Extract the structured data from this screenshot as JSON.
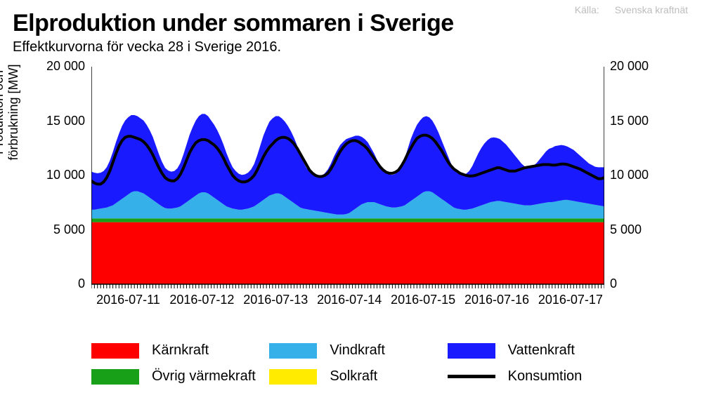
{
  "source_prefix": "Källa:",
  "source_name": "Svenska kraftnät",
  "title": "Elproduktion under sommaren i Sverige",
  "subtitle": "Effektkurvorna för vecka 28 i Sverige 2016.",
  "yaxis_label_line1": "Produktion och",
  "yaxis_label_line2": "förbrukning [MW]",
  "chart": {
    "type": "stacked_area_with_line",
    "background_color": "#ffffff",
    "axis_color": "#000000",
    "ylim": [
      0,
      20000
    ],
    "ytick_values": [
      0,
      5000,
      10000,
      15000,
      20000
    ],
    "ytick_labels": [
      "0",
      "5 000",
      "10 000",
      "15 000",
      "20 000"
    ],
    "x_count": 168,
    "x_major_ticks": [
      12,
      36,
      60,
      84,
      108,
      132,
      156
    ],
    "x_labels": [
      "2016-07-11",
      "2016-07-12",
      "2016-07-13",
      "2016-07-14",
      "2016-07-15",
      "2016-07-16",
      "2016-07-17"
    ],
    "series": [
      {
        "key": "karnkraft",
        "color": "#ff0000",
        "label": "Kärnkraft"
      },
      {
        "key": "ovrig_varmekraft",
        "color": "#18a018",
        "label": "Övrig värmekraft"
      },
      {
        "key": "vindkraft",
        "color": "#35b0e8",
        "label": "Vindkraft"
      },
      {
        "key": "solkraft",
        "color": "#ffeb00",
        "label": "Solkraft"
      },
      {
        "key": "vattenkraft",
        "color": "#1a1aff",
        "label": "Vattenkraft"
      }
    ],
    "line_series": {
      "key": "konsumtion",
      "color": "#000000",
      "width": 4,
      "label": "Konsumtion"
    },
    "data": {
      "karnkraft": [
        5700,
        5700,
        5700,
        5700,
        5700,
        5700,
        5700,
        5700,
        5700,
        5700,
        5700,
        5700,
        5700,
        5700,
        5700,
        5700,
        5700,
        5700,
        5700,
        5700,
        5700,
        5700,
        5700,
        5700,
        5700,
        5700,
        5700,
        5700,
        5700,
        5700,
        5700,
        5700,
        5700,
        5700,
        5700,
        5700,
        5700,
        5700,
        5700,
        5700,
        5700,
        5700,
        5700,
        5700,
        5700,
        5700,
        5700,
        5700,
        5700,
        5700,
        5700,
        5700,
        5700,
        5700,
        5700,
        5700,
        5700,
        5700,
        5700,
        5700,
        5700,
        5700,
        5700,
        5700,
        5700,
        5700,
        5700,
        5700,
        5700,
        5700,
        5700,
        5700,
        5700,
        5700,
        5700,
        5700,
        5700,
        5700,
        5700,
        5700,
        5700,
        5700,
        5700,
        5700,
        5700,
        5700,
        5700,
        5700,
        5700,
        5700,
        5700,
        5700,
        5700,
        5700,
        5700,
        5700,
        5700,
        5700,
        5700,
        5700,
        5700,
        5700,
        5700,
        5700,
        5700,
        5700,
        5700,
        5700,
        5700,
        5700,
        5700,
        5700,
        5700,
        5700,
        5700,
        5700,
        5700,
        5700,
        5700,
        5700,
        5700,
        5700,
        5700,
        5700,
        5700,
        5700,
        5700,
        5700,
        5700,
        5700,
        5700,
        5700,
        5700,
        5700,
        5700,
        5700,
        5700,
        5700,
        5700,
        5700,
        5700,
        5700,
        5700,
        5700,
        5700,
        5700,
        5700,
        5700,
        5700,
        5700,
        5700,
        5700,
        5700,
        5700,
        5700,
        5700,
        5700,
        5700,
        5700,
        5700,
        5700,
        5700,
        5700,
        5700,
        5700,
        5700,
        5700,
        5700
      ],
      "ovrig_varmekraft": [
        350,
        350,
        350,
        350,
        350,
        350,
        350,
        350,
        350,
        350,
        350,
        350,
        350,
        350,
        350,
        350,
        350,
        350,
        350,
        350,
        350,
        350,
        350,
        350,
        350,
        350,
        350,
        350,
        350,
        350,
        350,
        350,
        350,
        350,
        350,
        350,
        350,
        350,
        350,
        350,
        350,
        350,
        350,
        350,
        350,
        350,
        350,
        350,
        350,
        350,
        350,
        350,
        350,
        350,
        350,
        350,
        350,
        350,
        350,
        350,
        350,
        350,
        350,
        350,
        350,
        350,
        350,
        350,
        350,
        350,
        350,
        350,
        350,
        350,
        350,
        350,
        350,
        350,
        350,
        350,
        350,
        350,
        350,
        350,
        350,
        350,
        350,
        350,
        350,
        350,
        350,
        350,
        350,
        350,
        350,
        350,
        350,
        350,
        350,
        350,
        350,
        350,
        350,
        350,
        350,
        350,
        350,
        350,
        350,
        350,
        350,
        350,
        350,
        350,
        350,
        350,
        350,
        350,
        350,
        350,
        350,
        350,
        350,
        350,
        350,
        350,
        350,
        350,
        350,
        350,
        350,
        350,
        350,
        350,
        350,
        350,
        350,
        350,
        350,
        350,
        350,
        350,
        350,
        350,
        350,
        350,
        350,
        350,
        350,
        350,
        350,
        350,
        350,
        350,
        350,
        350,
        350,
        350,
        350,
        350,
        350,
        350,
        350,
        350,
        350,
        350,
        350,
        350
      ],
      "vindkraft": [
        800,
        800,
        850,
        900,
        950,
        1000,
        1100,
        1200,
        1400,
        1600,
        1800,
        2000,
        2200,
        2400,
        2500,
        2500,
        2400,
        2300,
        2100,
        1900,
        1700,
        1500,
        1300,
        1100,
        950,
        900,
        900,
        950,
        1000,
        1100,
        1300,
        1500,
        1700,
        1900,
        2100,
        2300,
        2400,
        2400,
        2300,
        2100,
        1900,
        1700,
        1500,
        1300,
        1100,
        1000,
        900,
        850,
        800,
        800,
        850,
        900,
        1000,
        1100,
        1300,
        1500,
        1700,
        1900,
        2100,
        2200,
        2300,
        2300,
        2200,
        2000,
        1800,
        1600,
        1400,
        1200,
        1000,
        900,
        850,
        800,
        750,
        700,
        650,
        600,
        550,
        500,
        450,
        400,
        350,
        350,
        350,
        400,
        500,
        700,
        900,
        1100,
        1300,
        1400,
        1500,
        1500,
        1500,
        1400,
        1300,
        1200,
        1100,
        1050,
        1000,
        1000,
        1050,
        1100,
        1200,
        1400,
        1600,
        1800,
        2000,
        2200,
        2400,
        2500,
        2500,
        2400,
        2200,
        2000,
        1800,
        1600,
        1400,
        1200,
        1000,
        900,
        850,
        800,
        800,
        850,
        900,
        1000,
        1100,
        1200,
        1300,
        1400,
        1500,
        1550,
        1600,
        1600,
        1550,
        1500,
        1450,
        1400,
        1350,
        1300,
        1250,
        1200,
        1200,
        1200,
        1250,
        1300,
        1350,
        1400,
        1450,
        1500,
        1500,
        1550,
        1600,
        1650,
        1700,
        1700,
        1650,
        1600,
        1550,
        1500,
        1450,
        1400,
        1350,
        1300,
        1250,
        1200,
        1150,
        1100
      ],
      "solkraft": [
        0,
        0,
        0,
        0,
        0,
        0,
        0,
        0,
        0,
        0,
        0,
        0,
        0,
        0,
        0,
        0,
        0,
        0,
        0,
        0,
        0,
        0,
        0,
        0,
        0,
        0,
        0,
        0,
        0,
        0,
        0,
        0,
        0,
        0,
        0,
        0,
        0,
        0,
        0,
        0,
        0,
        0,
        0,
        0,
        0,
        0,
        0,
        0,
        0,
        0,
        0,
        0,
        0,
        0,
        0,
        0,
        0,
        0,
        0,
        0,
        0,
        0,
        0,
        0,
        0,
        0,
        0,
        0,
        0,
        0,
        0,
        0,
        0,
        0,
        0,
        0,
        0,
        0,
        0,
        0,
        0,
        0,
        0,
        0,
        0,
        0,
        0,
        0,
        0,
        0,
        0,
        0,
        0,
        0,
        0,
        0,
        0,
        0,
        0,
        0,
        0,
        0,
        0,
        0,
        0,
        0,
        0,
        0,
        0,
        0,
        0,
        0,
        0,
        0,
        0,
        0,
        0,
        0,
        0,
        0,
        0,
        0,
        0,
        0,
        0,
        0,
        0,
        0,
        0,
        0,
        0,
        0,
        0,
        0,
        0,
        0,
        0,
        0,
        0,
        0,
        0,
        0,
        0,
        0,
        0,
        0,
        0,
        0,
        0,
        0,
        0,
        0,
        0,
        0,
        0,
        0,
        0,
        0,
        0,
        0,
        0,
        0,
        0,
        0,
        0,
        0,
        0,
        0
      ],
      "vattenkraft": [
        3500,
        3400,
        3300,
        3300,
        3400,
        3700,
        4200,
        4900,
        5600,
        6200,
        6700,
        7000,
        7100,
        7100,
        7000,
        6900,
        6800,
        6700,
        6500,
        6200,
        5800,
        5200,
        4600,
        4100,
        3700,
        3500,
        3400,
        3400,
        3600,
        4000,
        4600,
        5300,
        6000,
        6500,
        6900,
        7100,
        7200,
        7200,
        7100,
        6900,
        6700,
        6400,
        6000,
        5500,
        4900,
        4300,
        3800,
        3500,
        3300,
        3200,
        3200,
        3300,
        3500,
        3900,
        4500,
        5200,
        5900,
        6400,
        6800,
        7000,
        7100,
        7100,
        7000,
        6900,
        6700,
        6400,
        6000,
        5500,
        4900,
        4300,
        3800,
        3500,
        3300,
        3200,
        3200,
        3300,
        3600,
        4000,
        4600,
        5300,
        5900,
        6400,
        6700,
        6900,
        6900,
        6800,
        6700,
        6500,
        6200,
        5900,
        5500,
        5000,
        4500,
        4000,
        3600,
        3300,
        3100,
        3000,
        3000,
        3100,
        3300,
        3700,
        4300,
        5000,
        5700,
        6200,
        6600,
        6800,
        6900,
        6900,
        6800,
        6600,
        6300,
        5900,
        5400,
        4900,
        4400,
        3900,
        3500,
        3300,
        3200,
        3200,
        3300,
        3500,
        3900,
        4400,
        4900,
        5300,
        5600,
        5800,
        5900,
        5900,
        5800,
        5700,
        5500,
        5300,
        5000,
        4700,
        4400,
        4100,
        3800,
        3600,
        3500,
        3500,
        3600,
        3800,
        4100,
        4400,
        4700,
        4900,
        5000,
        5100,
        5100,
        5100,
        5000,
        4900,
        4800,
        4700,
        4500,
        4300,
        4100,
        3900,
        3700,
        3600,
        3500,
        3500,
        3550,
        3600
      ],
      "konsumtion": [
        9500,
        9300,
        9200,
        9200,
        9400,
        9800,
        10400,
        11200,
        12000,
        12700,
        13200,
        13500,
        13600,
        13600,
        13500,
        13400,
        13300,
        13100,
        12800,
        12400,
        11900,
        11300,
        10700,
        10200,
        9800,
        9600,
        9500,
        9500,
        9700,
        10100,
        10700,
        11400,
        12100,
        12600,
        13000,
        13200,
        13300,
        13300,
        13200,
        13000,
        12800,
        12500,
        12100,
        11600,
        11000,
        10500,
        10000,
        9700,
        9500,
        9400,
        9400,
        9500,
        9700,
        10000,
        10500,
        11100,
        11700,
        12200,
        12600,
        12900,
        13200,
        13400,
        13500,
        13500,
        13400,
        13200,
        12900,
        12500,
        12000,
        11500,
        11000,
        10500,
        10200,
        10000,
        9900,
        9900,
        10000,
        10200,
        10600,
        11100,
        11700,
        12200,
        12600,
        12900,
        13100,
        13200,
        13200,
        13100,
        12900,
        12700,
        12400,
        12000,
        11600,
        11200,
        10800,
        10500,
        10300,
        10200,
        10200,
        10300,
        10500,
        10900,
        11400,
        12000,
        12500,
        13000,
        13400,
        13600,
        13700,
        13700,
        13600,
        13400,
        13100,
        12700,
        12300,
        11800,
        11300,
        10900,
        10600,
        10400,
        10200,
        10100,
        10000,
        9950,
        9950,
        10000,
        10100,
        10200,
        10300,
        10400,
        10500,
        10600,
        10700,
        10700,
        10600,
        10500,
        10400,
        10400,
        10400,
        10500,
        10600,
        10700,
        10750,
        10800,
        10850,
        10900,
        10950,
        11000,
        11000,
        11000,
        10950,
        10950,
        11000,
        11050,
        11050,
        11000,
        10900,
        10800,
        10700,
        10600,
        10450,
        10300,
        10150,
        10000,
        9850,
        9700,
        9700,
        9800
      ]
    }
  },
  "legend": {
    "rows": [
      [
        {
          "swatch": "#ff0000",
          "type": "box",
          "label": "Kärnkraft"
        },
        {
          "swatch": "#35b0e8",
          "type": "box",
          "label": "Vindkraft"
        },
        {
          "swatch": "#1a1aff",
          "type": "box",
          "label": "Vattenkraft"
        }
      ],
      [
        {
          "swatch": "#18a018",
          "type": "box",
          "label": "Övrig värmekraft"
        },
        {
          "swatch": "#ffeb00",
          "type": "box",
          "label": "Solkraft"
        },
        {
          "swatch": "#000000",
          "type": "line",
          "label": "Konsumtion"
        }
      ]
    ]
  }
}
